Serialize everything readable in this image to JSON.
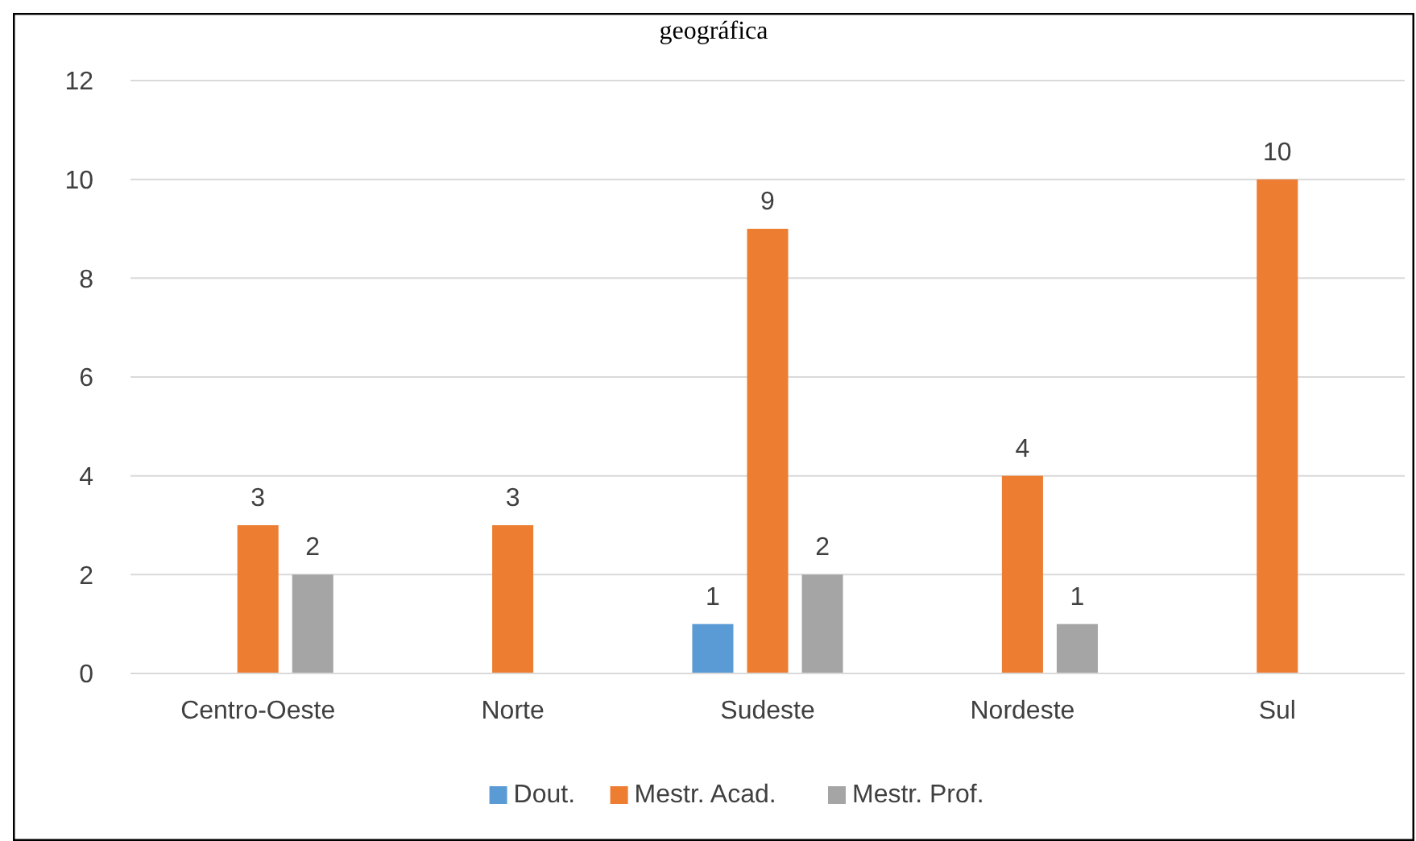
{
  "chart_data": {
    "type": "bar",
    "title": "geográfica",
    "categories": [
      "Centro-Oeste",
      "Norte",
      "Sudeste",
      "Nordeste",
      "Sul"
    ],
    "series": [
      {
        "name": "Dout.",
        "color": "#5b9bd5",
        "values": [
          null,
          null,
          1,
          null,
          null
        ]
      },
      {
        "name": "Mestr. Acad.",
        "color": "#ed7d31",
        "values": [
          3,
          3,
          9,
          4,
          10
        ]
      },
      {
        "name": "Mestr. Prof.",
        "color": "#a5a5a5",
        "values": [
          2,
          null,
          2,
          1,
          null
        ]
      }
    ],
    "ylim": [
      0,
      12
    ],
    "yticks": [
      0,
      2,
      4,
      6,
      8,
      10,
      12
    ],
    "grid": "y",
    "legend": "bottom",
    "data_labels": true
  }
}
